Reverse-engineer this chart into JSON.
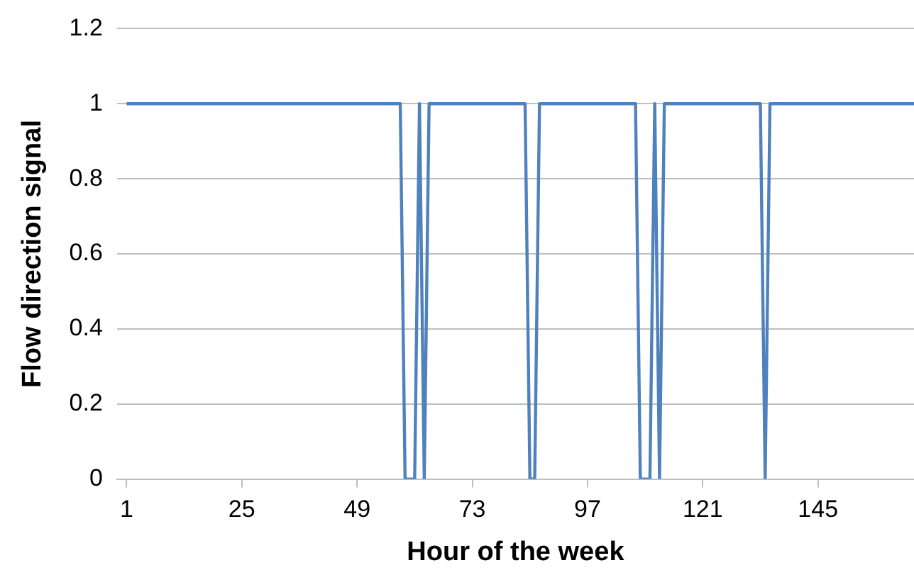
{
  "chart_data": {
    "type": "line",
    "xlabel": "Hour of the week",
    "ylabel": "Flow direction signal",
    "x": [
      1,
      58,
      59,
      61,
      62,
      63,
      64,
      84,
      85,
      86,
      87,
      107,
      108,
      110,
      111,
      112,
      113,
      133,
      134,
      135,
      165
    ],
    "values": [
      1,
      1,
      0,
      0,
      1,
      0,
      1,
      1,
      0,
      0,
      1,
      1,
      0,
      0,
      1,
      0,
      1,
      1,
      0,
      1,
      1
    ],
    "color": "#4f81bd",
    "xlim": [
      -1,
      165
    ],
    "xticks": [
      1,
      25,
      49,
      73,
      97,
      121,
      145
    ],
    "ylim": [
      0,
      1.2
    ],
    "yticks": [
      0,
      0.2,
      0.4,
      0.6,
      0.8,
      1,
      1.2
    ],
    "grid": "y",
    "legend": false,
    "marker": "none",
    "line_style": "solid"
  }
}
